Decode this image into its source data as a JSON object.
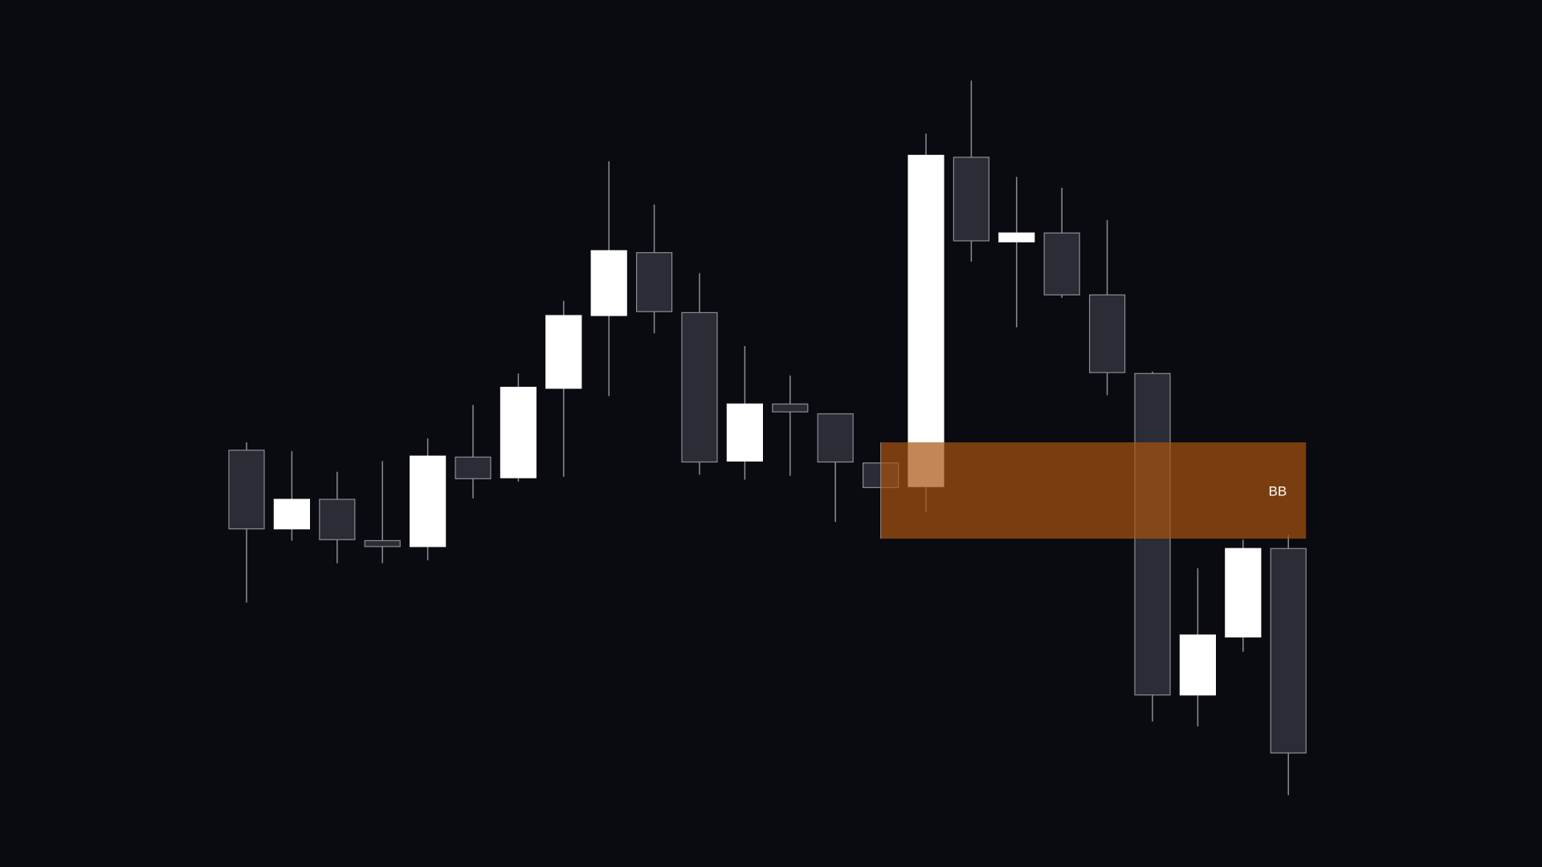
{
  "chart_data": {
    "type": "candlestick",
    "open": [
      424,
      344,
      374,
      332,
      326,
      417,
      396,
      487,
      561,
      625,
      564,
      413,
      471,
      461,
      411,
      387,
      722,
      636,
      645,
      582,
      502,
      175,
      234,
      324
    ],
    "high": [
      432,
      423,
      402,
      413,
      436,
      470,
      502,
      576,
      718,
      674,
      604,
      530,
      500,
      461,
      411,
      746,
      800,
      702,
      691,
      658,
      504,
      304,
      333,
      338
    ],
    "low": [
      269,
      332,
      309,
      309,
      312,
      375,
      392,
      397,
      479,
      543,
      399,
      394,
      398,
      351,
      386,
      361,
      616,
      549,
      579,
      480,
      148,
      143,
      219,
      73
    ],
    "close": [
      344,
      374,
      333,
      326,
      418,
      395,
      488,
      561,
      627,
      565,
      412,
      471,
      463,
      412,
      386,
      724,
      637,
      645,
      582,
      503,
      175,
      236,
      324,
      116
    ],
    "up_color": "#ffffff",
    "down_color": "#2a2d35",
    "down_border": "#8a8d94",
    "wick_color": "#8a8d94",
    "ylim": [
      0,
      882
    ],
    "zone": {
      "label": "BB",
      "high": 432,
      "low": 334,
      "color": "#aa5210"
    }
  }
}
